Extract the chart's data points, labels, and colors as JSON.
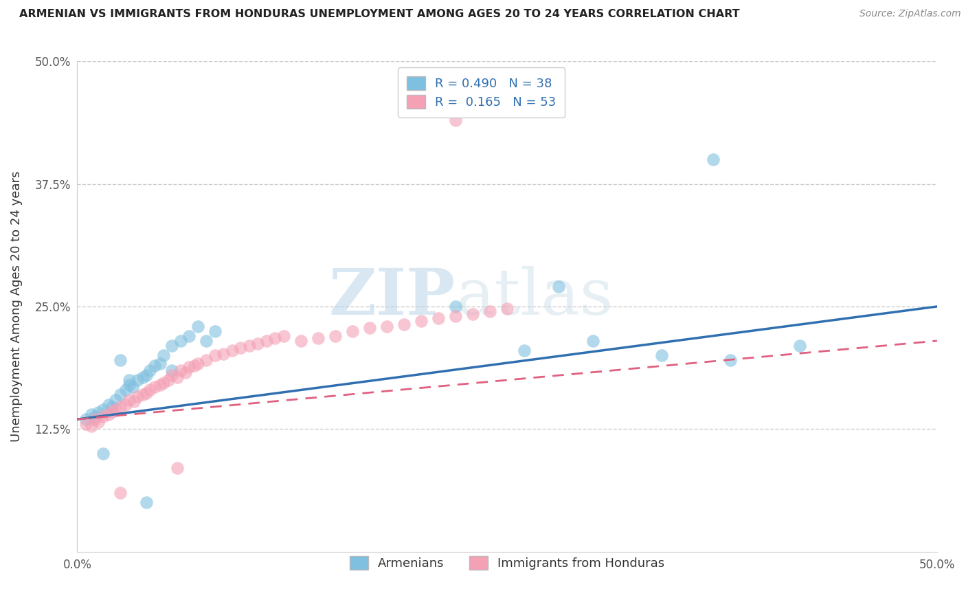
{
  "title": "ARMENIAN VS IMMIGRANTS FROM HONDURAS UNEMPLOYMENT AMONG AGES 20 TO 24 YEARS CORRELATION CHART",
  "source": "Source: ZipAtlas.com",
  "ylabel": "Unemployment Among Ages 20 to 24 years",
  "watermark_zip": "ZIP",
  "watermark_atlas": "atlas",
  "armenian_R": 0.49,
  "armenian_N": 38,
  "honduras_R": 0.165,
  "honduras_N": 53,
  "armenian_color": "#7fbfdf",
  "honduras_color": "#f4a0b5",
  "armenian_line_color": "#3070b0",
  "honduras_line_color": "#e06080",
  "xlim": [
    0.0,
    0.5
  ],
  "ylim": [
    0.0,
    0.5
  ],
  "armenian_x": [
    0.005,
    0.008,
    0.01,
    0.012,
    0.015,
    0.018,
    0.02,
    0.022,
    0.025,
    0.028,
    0.03,
    0.032,
    0.035,
    0.038,
    0.04,
    0.042,
    0.045,
    0.048,
    0.05,
    0.055,
    0.06,
    0.065,
    0.07,
    0.075,
    0.08,
    0.055,
    0.03,
    0.025,
    0.22,
    0.28,
    0.34,
    0.38,
    0.42,
    0.37,
    0.3,
    0.26,
    0.04,
    0.015
  ],
  "armenian_y": [
    0.135,
    0.14,
    0.138,
    0.142,
    0.145,
    0.15,
    0.148,
    0.155,
    0.16,
    0.165,
    0.17,
    0.168,
    0.175,
    0.178,
    0.18,
    0.185,
    0.19,
    0.192,
    0.2,
    0.21,
    0.215,
    0.22,
    0.23,
    0.215,
    0.225,
    0.185,
    0.175,
    0.195,
    0.25,
    0.27,
    0.2,
    0.195,
    0.21,
    0.4,
    0.215,
    0.205,
    0.05,
    0.1
  ],
  "honduras_x": [
    0.005,
    0.008,
    0.01,
    0.012,
    0.015,
    0.018,
    0.02,
    0.022,
    0.025,
    0.028,
    0.03,
    0.033,
    0.035,
    0.038,
    0.04,
    0.042,
    0.045,
    0.048,
    0.05,
    0.053,
    0.055,
    0.058,
    0.06,
    0.063,
    0.065,
    0.068,
    0.07,
    0.075,
    0.08,
    0.085,
    0.09,
    0.095,
    0.1,
    0.105,
    0.11,
    0.115,
    0.12,
    0.13,
    0.14,
    0.15,
    0.16,
    0.17,
    0.18,
    0.19,
    0.2,
    0.21,
    0.22,
    0.23,
    0.24,
    0.25,
    0.058,
    0.025,
    0.22
  ],
  "honduras_y": [
    0.13,
    0.128,
    0.135,
    0.132,
    0.138,
    0.14,
    0.143,
    0.145,
    0.148,
    0.15,
    0.155,
    0.153,
    0.158,
    0.16,
    0.162,
    0.165,
    0.168,
    0.17,
    0.172,
    0.175,
    0.18,
    0.178,
    0.185,
    0.183,
    0.188,
    0.19,
    0.192,
    0.195,
    0.2,
    0.202,
    0.205,
    0.208,
    0.21,
    0.212,
    0.215,
    0.218,
    0.22,
    0.215,
    0.218,
    0.22,
    0.225,
    0.228,
    0.23,
    0.232,
    0.235,
    0.238,
    0.24,
    0.242,
    0.245,
    0.248,
    0.085,
    0.06,
    0.44
  ]
}
